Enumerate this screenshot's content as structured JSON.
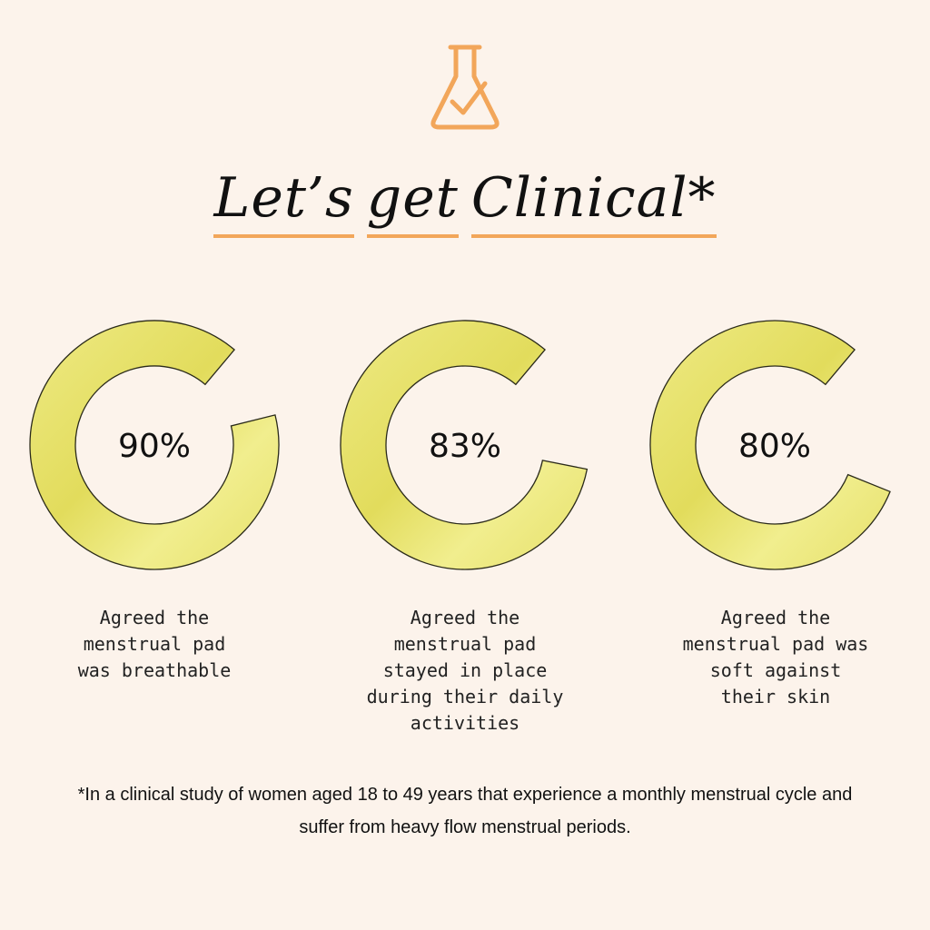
{
  "header": {
    "title_words": [
      "Let’s",
      "get",
      "Clinical*"
    ],
    "accent_color": "#F2A65A",
    "icon": "flask-check-icon"
  },
  "chart_data": {
    "type": "donut",
    "ring_color": "#EDE878",
    "ring_outline": "#2A2A1A",
    "items": [
      {
        "label": "90%",
        "value": 90,
        "caption": "Agreed the\nmenstrual pad\nwas breathable"
      },
      {
        "label": "83%",
        "value": 83,
        "caption": "Agreed the\nmenstrual pad\nstayed in place\nduring their daily\nactivities"
      },
      {
        "label": "80%",
        "value": 80,
        "caption": "Agreed the\nmenstrual pad was\nsoft against\ntheir skin"
      }
    ]
  },
  "footnote": "*In a clinical study of women aged 18 to 49 years that experience a monthly menstrual cycle and suffer from heavy flow menstrual periods."
}
